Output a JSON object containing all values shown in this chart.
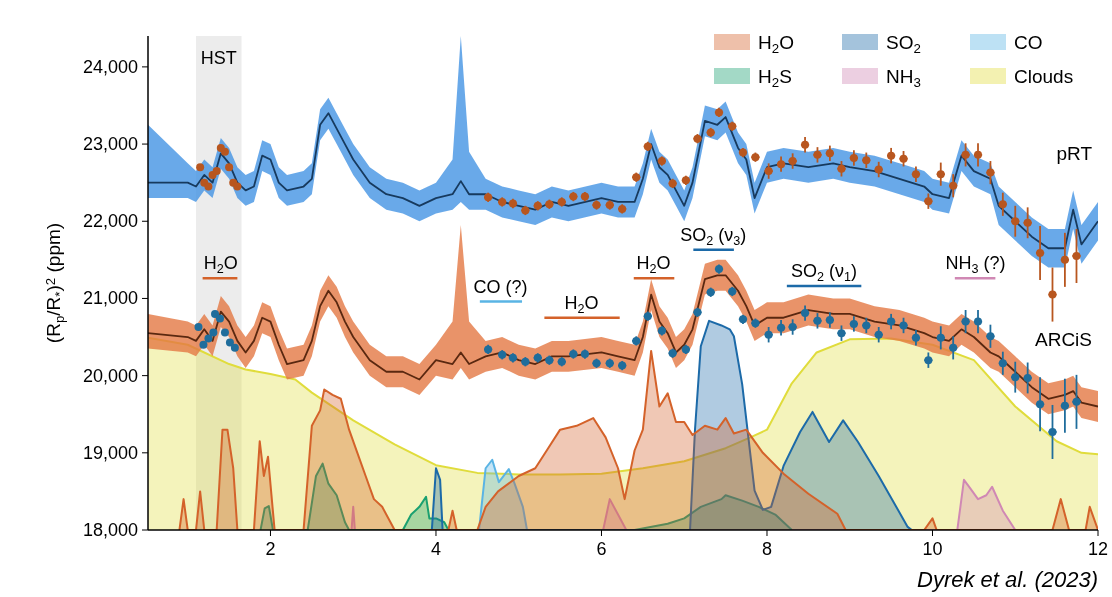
{
  "chart_data": {
    "type": "line",
    "ylabel": "(R$_{p}$/R$_{*}$)$^{2}$ (ppm)",
    "xlim": [
      0.52,
      12
    ],
    "ylim": [
      18000,
      24400
    ],
    "xticks": [
      2,
      4,
      6,
      8,
      10,
      12
    ],
    "yticks": [
      {
        "value": 18000,
        "label": "18,000"
      },
      {
        "value": 19000,
        "label": "19,000"
      },
      {
        "value": 20000,
        "label": "20,000"
      },
      {
        "value": 21000,
        "label": "21,000"
      },
      {
        "value": 22000,
        "label": "22,000"
      },
      {
        "value": 23000,
        "label": "23,000"
      },
      {
        "value": 24000,
        "label": "24,000"
      }
    ],
    "legend": "top right",
    "bands": [
      {
        "axis": "x",
        "from": 1.1,
        "to": 1.65,
        "label": "HST",
        "color": "#e6e6e6"
      }
    ],
    "annotations": [
      {
        "text": "H$_{2}$O",
        "x": 1.4,
        "y": 21260
      },
      {
        "text": "CO (?)",
        "x": 4.78,
        "y": 20960
      },
      {
        "text": "H$_{2}$O",
        "x": 5.76,
        "y": 20750
      },
      {
        "text": "H$_{2}$O",
        "x": 6.63,
        "y": 21260
      },
      {
        "text": "SO$_{2}$ (ν$_{3}$)",
        "x": 7.35,
        "y": 21630
      },
      {
        "text": "SO$_{2}$ (ν$_{1}$)",
        "x": 8.69,
        "y": 21160
      },
      {
        "text": "NH$_{3}$ (?)",
        "x": 10.52,
        "y": 21260
      },
      "Dyrek et al. (2023)"
    ],
    "series": [
      {
        "type": "area",
        "name": "H$_{2}$O",
        "color": "#d4622a",
        "x": [
          0.9,
          0.95,
          1.0,
          1.1,
          1.15,
          1.2,
          1.35,
          1.42,
          1.48,
          1.55,
          1.6,
          1.8,
          1.87,
          1.92,
          1.97,
          2.05,
          2.4,
          2.5,
          2.6,
          2.65,
          2.75,
          2.85,
          2.95,
          3.05,
          3.15,
          3.25,
          3.35,
          3.45,
          3.5,
          4.15,
          4.2,
          4.25,
          4.5,
          4.6,
          4.75,
          5.0,
          5.2,
          5.35,
          5.5,
          5.7,
          5.9,
          6.05,
          6.2,
          6.28,
          6.4,
          6.5,
          6.6,
          6.7,
          6.8,
          6.9,
          7.0,
          7.1,
          7.25,
          7.4,
          7.5,
          7.6,
          7.75,
          7.95,
          8.2,
          8.5,
          8.85,
          8.95,
          9.9,
          10.0,
          10.05,
          11.45,
          11.55,
          11.65,
          11.85,
          11.9,
          12.0
        ],
        "values": [
          18000,
          18400,
          18000,
          18000,
          18500,
          18000,
          18000,
          19300,
          19300,
          18800,
          18000,
          18000,
          19150,
          18700,
          18950,
          18000,
          18000,
          19350,
          19550,
          19820,
          19750,
          19700,
          19300,
          19000,
          18700,
          18400,
          18300,
          18100,
          18000,
          18000,
          18250,
          18000,
          18000,
          18300,
          18500,
          18700,
          18800,
          19050,
          19300,
          19350,
          19450,
          19200,
          18800,
          18400,
          19030,
          19300,
          20320,
          19600,
          19770,
          19400,
          19400,
          19230,
          19350,
          19300,
          19450,
          19250,
          19300,
          19000,
          18730,
          18470,
          18210,
          18000,
          18000,
          18150,
          18000,
          18000,
          18400,
          18000,
          18000,
          18300,
          18000
        ]
      },
      {
        "type": "area",
        "name": "SO$_{2}$",
        "color": "#1c6aa8",
        "x": [
          3.95,
          4.0,
          4.05,
          4.08,
          7.07,
          7.13,
          7.2,
          7.3,
          7.45,
          7.55,
          7.6,
          7.7,
          7.85,
          7.95,
          8.05,
          8.2,
          8.4,
          8.55,
          8.75,
          8.92,
          9.1,
          9.35,
          9.7,
          9.75
        ],
        "values": [
          18000,
          18800,
          18650,
          18000,
          18000,
          19300,
          20380,
          20710,
          20650,
          20600,
          20510,
          19890,
          18510,
          18260,
          18300,
          18830,
          19270,
          19530,
          19140,
          19420,
          19140,
          18700,
          18040,
          18000
        ]
      },
      {
        "type": "area",
        "name": "CO",
        "color": "#5ab4e4",
        "x": [
          4.52,
          4.6,
          4.68,
          4.76,
          4.88,
          4.95,
          5.05,
          5.1
        ],
        "values": [
          18000,
          18800,
          18910,
          18620,
          18790,
          18600,
          18300,
          18000
        ]
      },
      {
        "type": "area",
        "name": "H$_{2}$S",
        "color": "#1aa070",
        "x": [
          1.88,
          1.93,
          1.98,
          2.03,
          2.45,
          2.55,
          2.63,
          2.7,
          2.8,
          2.9,
          2.95,
          3.6,
          3.7,
          3.8,
          3.88,
          3.92,
          4.0,
          4.1,
          4.15,
          6.4,
          6.8,
          7.0,
          7.2,
          7.45,
          7.5,
          7.7,
          7.9,
          8.1,
          8.3
        ],
        "values": [
          18000,
          18280,
          18310,
          18000,
          18000,
          18700,
          18860,
          18600,
          18450,
          18100,
          18000,
          18000,
          18200,
          18300,
          18430,
          18150,
          18150,
          18100,
          18000,
          18000,
          18080,
          18150,
          18300,
          18400,
          18450,
          18380,
          18300,
          18200,
          18000
        ]
      },
      {
        "type": "area",
        "name": "NH$_{3}$",
        "color": "#d088b4",
        "x": [
          2.98,
          3.0,
          3.02,
          6.02,
          6.1,
          6.2,
          6.3,
          10.3,
          10.38,
          10.45,
          10.55,
          10.65,
          10.72,
          10.85,
          11.0
        ],
        "values": [
          18000,
          18300,
          18000,
          18000,
          18400,
          18200,
          18000,
          18000,
          18650,
          18550,
          18400,
          18450,
          18560,
          18250,
          18000
        ]
      },
      {
        "type": "area",
        "name": "Clouds",
        "color": "#e0dc3c",
        "x": [
          0.52,
          1.0,
          1.5,
          1.7,
          2.0,
          2.3,
          2.5,
          3.0,
          3.5,
          4.0,
          4.5,
          5.0,
          5.5,
          6.0,
          6.5,
          7.0,
          7.5,
          7.8,
          8.0,
          8.3,
          8.6,
          9.0,
          9.5,
          10.0,
          10.5,
          11.0,
          11.5,
          11.8,
          12.0
        ],
        "values": [
          20490,
          20400,
          20150,
          20080,
          20020,
          19950,
          19780,
          19420,
          19110,
          18840,
          18740,
          18720,
          18720,
          18730,
          18800,
          18890,
          19060,
          19200,
          19300,
          19900,
          20300,
          20470,
          20480,
          20400,
          20200,
          19600,
          19150,
          19000,
          18980
        ]
      },
      {
        "color": "#d4622a",
        "x": [
          1.18,
          1.6
        ],
        "values": [
          21260,
          21260
        ]
      },
      {
        "color": "#5ab4e4",
        "x": [
          4.53,
          5.04
        ],
        "values": [
          20960,
          20960
        ]
      },
      {
        "color": "#d4622a",
        "x": [
          5.31,
          6.22
        ],
        "values": [
          20750,
          20750
        ]
      },
      {
        "color": "#d4622a",
        "x": [
          6.39,
          6.88
        ],
        "values": [
          21260,
          21260
        ]
      },
      {
        "color": "#1c6aa8",
        "x": [
          7.11,
          7.6
        ],
        "values": [
          21630,
          21630
        ]
      },
      {
        "color": "#1c6aa8",
        "x": [
          8.24,
          9.14
        ],
        "values": [
          21160,
          21160
        ]
      },
      {
        "color": "#d088b4",
        "x": [
          10.27,
          10.76
        ],
        "values": [
          21260,
          21260
        ]
      },
      {
        "name": "pRT",
        "color": "#173a5e",
        "x": [
          0.52,
          1.0,
          1.1,
          1.2,
          1.3,
          1.4,
          1.5,
          1.6,
          1.7,
          1.8,
          1.9,
          2.0,
          2.1,
          2.2,
          2.4,
          2.5,
          2.6,
          2.7,
          2.8,
          2.9,
          3.0,
          3.2,
          3.4,
          3.6,
          3.8,
          4.0,
          4.2,
          4.3,
          4.4,
          4.6,
          4.8,
          5.0,
          5.2,
          5.4,
          5.6,
          6.0,
          6.2,
          6.4,
          6.5,
          6.6,
          6.7,
          6.8,
          6.9,
          7.0,
          7.1,
          7.25,
          7.4,
          7.5,
          7.65,
          7.75,
          7.85,
          8.0,
          8.2,
          8.5,
          8.8,
          9.0,
          9.3,
          9.6,
          9.9,
          10.0,
          10.2,
          10.35,
          10.5,
          10.7,
          10.8,
          11.0,
          11.2,
          11.4,
          11.6,
          11.7,
          11.8,
          12.0
        ],
        "values": [
          22500,
          22500,
          22450,
          22600,
          22500,
          22880,
          22750,
          22500,
          22400,
          22450,
          22850,
          22800,
          22500,
          22400,
          22450,
          22550,
          23250,
          23400,
          23200,
          23000,
          22800,
          22500,
          22350,
          22300,
          22200,
          22300,
          22350,
          22520,
          22350,
          22350,
          22250,
          22200,
          22150,
          22250,
          22200,
          22300,
          22250,
          22250,
          22550,
          23000,
          22700,
          22600,
          22400,
          22200,
          22500,
          23300,
          23250,
          23350,
          22950,
          22800,
          22300,
          22700,
          22750,
          22700,
          22750,
          22700,
          22650,
          22550,
          22450,
          22350,
          22300,
          22850,
          22650,
          22550,
          22200,
          22000,
          21800,
          21650,
          21650,
          22150,
          21700,
          22000
        ],
        "lower": [
          22300,
          22300,
          22250,
          22400,
          22300,
          22680,
          22550,
          22300,
          22200,
          22250,
          22650,
          22600,
          22300,
          22200,
          22250,
          22350,
          23050,
          23200,
          23000,
          22800,
          22600,
          22300,
          22150,
          22100,
          22000,
          22100,
          22150,
          22250,
          22150,
          22150,
          22050,
          22000,
          21950,
          22050,
          22000,
          22100,
          22050,
          22050,
          22350,
          22800,
          22500,
          22400,
          22200,
          22000,
          22300,
          23100,
          23050,
          23150,
          22750,
          22600,
          22100,
          22500,
          22550,
          22500,
          22550,
          22500,
          22450,
          22350,
          22250,
          22150,
          22100,
          22650,
          22450,
          22350,
          21950,
          21750,
          21550,
          21400,
          21400,
          21900,
          21450,
          21750
        ],
        "upper": [
          23250,
          22750,
          22650,
          22800,
          22700,
          23080,
          22950,
          22700,
          22600,
          22650,
          23050,
          23000,
          22700,
          22600,
          22650,
          22750,
          23450,
          23600,
          23400,
          23200,
          23000,
          22700,
          22550,
          22500,
          22400,
          22500,
          22800,
          24400,
          22900,
          22550,
          22450,
          22400,
          22350,
          22450,
          22400,
          22500,
          22450,
          22450,
          22750,
          23200,
          22900,
          22800,
          22600,
          22400,
          22700,
          23500,
          23450,
          23550,
          23150,
          23000,
          22500,
          22900,
          22950,
          22900,
          22950,
          22900,
          22850,
          22750,
          22650,
          22550,
          22500,
          23050,
          22850,
          22750,
          22450,
          22250,
          22050,
          21900,
          21900,
          22400,
          21950,
          22250
        ]
      },
      {
        "name": "ARCiS",
        "color": "#5a2810",
        "x": [
          0.52,
          1.0,
          1.1,
          1.2,
          1.3,
          1.4,
          1.5,
          1.6,
          1.7,
          1.8,
          1.9,
          2.0,
          2.1,
          2.2,
          2.4,
          2.5,
          2.6,
          2.7,
          2.8,
          2.9,
          3.0,
          3.2,
          3.4,
          3.6,
          3.8,
          4.0,
          4.2,
          4.3,
          4.4,
          4.6,
          4.8,
          5.0,
          5.2,
          5.4,
          5.6,
          6.0,
          6.2,
          6.4,
          6.5,
          6.6,
          6.7,
          6.8,
          6.9,
          7.0,
          7.1,
          7.25,
          7.4,
          7.5,
          7.65,
          7.75,
          7.85,
          8.0,
          8.2,
          8.5,
          8.8,
          9.0,
          9.3,
          9.6,
          9.9,
          10.0,
          10.2,
          10.35,
          10.5,
          10.7,
          10.8,
          11.0,
          11.2,
          11.4,
          11.6,
          11.7,
          11.8,
          12.0
        ],
        "values": [
          20550,
          20500,
          20450,
          20600,
          20450,
          20830,
          20700,
          20450,
          20300,
          20450,
          20750,
          20700,
          20400,
          20150,
          20200,
          20450,
          20900,
          21100,
          20950,
          20700,
          20500,
          20200,
          20050,
          20050,
          19950,
          20200,
          20150,
          20300,
          20150,
          20250,
          20300,
          20200,
          20150,
          20250,
          20250,
          20300,
          20250,
          20200,
          20500,
          21050,
          20700,
          20550,
          20300,
          20400,
          20600,
          21250,
          21300,
          21300,
          21100,
          20900,
          20650,
          20750,
          20750,
          20850,
          20800,
          20800,
          20700,
          20650,
          20550,
          20500,
          20450,
          20600,
          20500,
          20300,
          20250,
          20050,
          19850,
          19700,
          19750,
          19800,
          19650,
          19600
        ],
        "lower": [
          20350,
          20300,
          20250,
          20400,
          20250,
          20630,
          20500,
          20250,
          20100,
          20250,
          20550,
          20500,
          20200,
          19950,
          20000,
          20250,
          20700,
          20900,
          20750,
          20500,
          20300,
          20000,
          19850,
          19850,
          19750,
          20000,
          19950,
          20100,
          19950,
          20050,
          20100,
          20000,
          19950,
          20050,
          20050,
          20100,
          20050,
          20000,
          20300,
          20850,
          20500,
          20350,
          20100,
          20200,
          20400,
          21050,
          21100,
          21100,
          20900,
          20700,
          20450,
          20550,
          20550,
          20650,
          20600,
          20600,
          20500,
          20450,
          20350,
          20300,
          20250,
          20400,
          20300,
          20100,
          20050,
          19850,
          19650,
          19500,
          19550,
          19600,
          19450,
          19400
        ],
        "upper": [
          20800,
          20700,
          20650,
          20800,
          20650,
          21030,
          20900,
          20650,
          20500,
          20650,
          20950,
          20900,
          20600,
          20350,
          20400,
          20650,
          21100,
          21300,
          21150,
          20900,
          20700,
          20400,
          20250,
          20250,
          20150,
          20400,
          20700,
          21950,
          20700,
          20450,
          20500,
          20400,
          20350,
          20450,
          20450,
          20500,
          20450,
          20400,
          20700,
          21250,
          20900,
          20750,
          20500,
          20600,
          20800,
          21450,
          21500,
          21500,
          21300,
          21100,
          20850,
          20950,
          20950,
          21050,
          21000,
          21000,
          20900,
          20850,
          20750,
          20700,
          20650,
          20800,
          20700,
          20500,
          20450,
          20250,
          20050,
          19900,
          19950,
          20000,
          19850,
          19800
        ]
      },
      {
        "type": "scatter",
        "marker": "circle",
        "color": "#b8561f",
        "x": [
          1.15,
          1.2,
          1.25,
          1.3,
          1.35,
          1.4,
          1.45,
          1.5,
          1.55,
          1.6
        ],
        "values": [
          22700,
          22500,
          22450,
          22600,
          22650,
          22950,
          22900,
          22700,
          22500,
          22450
        ]
      },
      {
        "type": "scatter",
        "marker": "circle",
        "color": "#b8561f",
        "x": [
          4.63,
          4.8,
          4.93,
          5.08,
          5.23,
          5.37,
          5.52,
          5.66,
          5.8,
          5.94,
          6.1,
          6.25,
          6.42,
          6.56,
          6.73,
          6.86,
          7.02,
          7.16,
          7.32,
          7.42,
          7.58,
          7.71,
          7.86,
          8.02,
          8.17,
          8.31,
          8.46,
          8.61,
          8.76,
          8.9,
          9.05,
          9.2,
          9.35,
          9.5,
          9.65,
          9.8,
          9.95,
          10.1,
          10.25,
          10.4,
          10.55,
          10.7,
          10.85,
          11.0,
          11.15,
          11.3,
          11.45,
          11.6,
          11.74
        ],
        "values": [
          22310,
          22250,
          22230,
          22140,
          22200,
          22220,
          22250,
          22320,
          22320,
          22210,
          22210,
          22160,
          22570,
          22970,
          22780,
          22490,
          22530,
          23070,
          23150,
          23410,
          23230,
          22890,
          22830,
          22650,
          22740,
          22780,
          22990,
          22860,
          22880,
          22680,
          22820,
          22790,
          22670,
          22850,
          22810,
          22610,
          22260,
          22610,
          22460,
          22860,
          22860,
          22630,
          22220,
          22000,
          21980,
          21590,
          21050,
          21500,
          21550
        ],
        "errors": [
          60,
          60,
          60,
          60,
          60,
          60,
          60,
          60,
          60,
          60,
          60,
          60,
          60,
          60,
          60,
          60,
          60,
          60,
          60,
          60,
          60,
          60,
          60,
          100,
          100,
          100,
          100,
          100,
          100,
          100,
          100,
          100,
          100,
          100,
          100,
          100,
          100,
          150,
          150,
          150,
          150,
          150,
          150,
          200,
          200,
          350,
          350,
          350,
          350
        ],
        "xerrors": [
          0.05,
          0.05,
          0.05,
          0.05,
          0.05,
          0.05,
          0.05,
          0.05,
          0.05,
          0.05,
          0.05,
          0.05,
          0.05,
          0.05,
          0.05,
          0.05,
          0.05,
          0.05,
          0.05,
          0.05,
          0.05,
          0.05,
          0.05,
          0.05,
          0.05,
          0.05,
          0.05,
          0.05,
          0.05,
          0.05,
          0.05,
          0.05,
          0.05,
          0.05,
          0.05,
          0.05,
          0.05,
          0.05,
          0.05,
          0.05,
          0.05,
          0.05,
          0.05,
          0.05,
          0.05,
          0.05,
          0.05,
          0.05,
          0.05
        ]
      },
      {
        "type": "scatter",
        "marker": "circle",
        "color": "#1f6d9c",
        "x": [
          1.13,
          1.19,
          1.25,
          1.31,
          1.33,
          1.39,
          1.45,
          1.51,
          1.57
        ],
        "values": [
          20630,
          20400,
          20480,
          20560,
          20800,
          20740,
          20560,
          20430,
          20360
        ]
      },
      {
        "type": "scatter",
        "marker": "circle",
        "color": "#1f6d9c",
        "x": [
          4.63,
          4.8,
          4.93,
          5.08,
          5.23,
          5.37,
          5.52,
          5.66,
          5.8,
          5.94,
          6.1,
          6.25,
          6.42,
          6.56,
          6.73,
          6.86,
          7.02,
          7.16,
          7.32,
          7.42,
          7.58,
          7.71,
          7.86,
          8.02,
          8.17,
          8.31,
          8.46,
          8.61,
          8.76,
          8.9,
          9.05,
          9.2,
          9.35,
          9.5,
          9.65,
          9.8,
          9.95,
          10.1,
          10.25,
          10.4,
          10.55,
          10.7,
          10.85,
          11.0,
          11.15,
          11.3,
          11.45,
          11.6,
          11.74
        ],
        "values": [
          20340,
          20270,
          20230,
          20180,
          20230,
          20200,
          20180,
          20280,
          20280,
          20160,
          20160,
          20130,
          20450,
          20770,
          20580,
          20290,
          20340,
          20820,
          21080,
          21380,
          21090,
          20730,
          20680,
          20530,
          20620,
          20630,
          20810,
          20710,
          20720,
          20550,
          20670,
          20650,
          20530,
          20700,
          20650,
          20490,
          20200,
          20490,
          20360,
          20700,
          20700,
          20510,
          20160,
          19980,
          19970,
          19630,
          19270,
          19610,
          19660
        ],
        "errors": [
          60,
          60,
          60,
          60,
          60,
          60,
          60,
          60,
          60,
          60,
          60,
          60,
          60,
          60,
          60,
          60,
          60,
          60,
          60,
          60,
          60,
          60,
          60,
          100,
          100,
          100,
          100,
          100,
          100,
          100,
          100,
          100,
          100,
          100,
          100,
          100,
          100,
          150,
          150,
          150,
          150,
          150,
          150,
          200,
          200,
          350,
          350,
          350,
          350
        ],
        "xerrors": [
          0.05,
          0.05,
          0.05,
          0.05,
          0.05,
          0.05,
          0.05,
          0.05,
          0.05,
          0.05,
          0.05,
          0.05,
          0.05,
          0.05,
          0.05,
          0.05,
          0.05,
          0.05,
          0.05,
          0.05,
          0.05,
          0.05,
          0.05,
          0.05,
          0.05,
          0.05,
          0.05,
          0.05,
          0.05,
          0.05,
          0.05,
          0.05,
          0.05,
          0.05,
          0.05,
          0.05,
          0.05,
          0.05,
          0.05,
          0.05,
          0.05,
          0.05,
          0.05,
          0.05,
          0.05,
          0.05,
          0.05,
          0.05,
          0.05
        ]
      }
    ]
  }
}
